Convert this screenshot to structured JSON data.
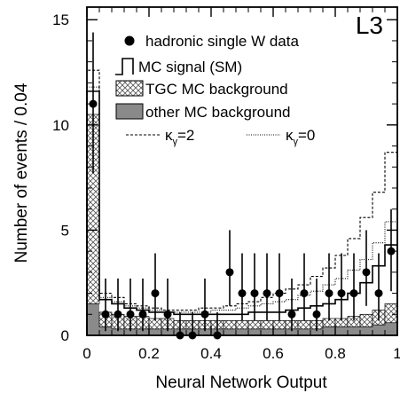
{
  "chart_data": {
    "type": "histogram",
    "experiment_label": "L3",
    "xlabel": "Neural Network Output",
    "ylabel": "Number of events / 0.04",
    "xlim": [
      0,
      1
    ],
    "ylim": [
      0,
      15.6
    ],
    "xticks": [
      0,
      0.2,
      0.4,
      0.6,
      0.8,
      1
    ],
    "xtick_labels": [
      "0",
      "0.2",
      "0.4",
      "0.6",
      "0.8",
      "1"
    ],
    "yticks": [
      0,
      5,
      10,
      15
    ],
    "ytick_labels": [
      "0",
      "5",
      "10",
      "15"
    ],
    "bin_edges": [
      0,
      0.04,
      0.08,
      0.12,
      0.16,
      0.2,
      0.24,
      0.28,
      0.32,
      0.36,
      0.4,
      0.44,
      0.48,
      0.52,
      0.56,
      0.6,
      0.64,
      0.68,
      0.72,
      0.76,
      0.8,
      0.84,
      0.88,
      0.92,
      0.96,
      1.0
    ],
    "legend_placement": "top-right",
    "legend": [
      {
        "key": "data",
        "label": "hadronic single W data"
      },
      {
        "key": "signal",
        "label": "MC signal (SM)"
      },
      {
        "key": "tgc",
        "label": "TGC MC background"
      },
      {
        "key": "other",
        "label": "other MC background"
      }
    ],
    "kappa_legend": [
      {
        "key": "k2",
        "label": "κ",
        "subscript": "γ",
        "value": "=2"
      },
      {
        "key": "k0",
        "label": "κ",
        "subscript": "γ",
        "value": "=0"
      }
    ],
    "series": [
      {
        "key": "other",
        "values": [
          1.5,
          0.4,
          0.3,
          0.3,
          0.3,
          0.3,
          0.3,
          0.3,
          0.3,
          0.3,
          0.3,
          0.3,
          0.3,
          0.3,
          0.3,
          0.3,
          0.3,
          0.3,
          0.3,
          0.4,
          0.4,
          0.4,
          0.4,
          0.5,
          0.6
        ]
      },
      {
        "key": "tgc",
        "values": [
          10.5,
          1.1,
          1.0,
          0.9,
          0.9,
          0.8,
          0.8,
          0.7,
          0.7,
          0.7,
          0.7,
          0.7,
          0.7,
          0.7,
          0.7,
          0.7,
          0.7,
          0.7,
          0.7,
          0.8,
          0.8,
          0.9,
          1.0,
          1.2,
          1.5
        ]
      },
      {
        "key": "signal",
        "values": [
          11.6,
          1.7,
          1.5,
          1.3,
          1.2,
          1.1,
          1.1,
          1.0,
          1.0,
          1.0,
          1.0,
          1.0,
          1.0,
          1.1,
          1.1,
          1.1,
          1.2,
          1.3,
          1.4,
          1.5,
          1.7,
          2.0,
          2.5,
          3.3,
          4.3
        ]
      },
      {
        "key": "k2",
        "values": [
          12.6,
          2.0,
          1.8,
          1.5,
          1.4,
          1.3,
          1.2,
          1.2,
          1.2,
          1.3,
          1.3,
          1.4,
          1.5,
          1.6,
          1.8,
          2.0,
          2.2,
          2.4,
          2.8,
          3.2,
          3.8,
          4.6,
          5.6,
          6.8,
          8.7
        ]
      },
      {
        "key": "k0",
        "values": [
          11.8,
          1.8,
          1.6,
          1.4,
          1.3,
          1.2,
          1.1,
          1.1,
          1.1,
          1.1,
          1.2,
          1.2,
          1.3,
          1.4,
          1.5,
          1.6,
          1.7,
          1.9,
          2.1,
          2.4,
          2.7,
          3.1,
          3.6,
          4.4,
          5.4
        ]
      }
    ],
    "data_points": {
      "x": [
        0.02,
        0.06,
        0.1,
        0.14,
        0.18,
        0.22,
        0.26,
        0.3,
        0.34,
        0.38,
        0.42,
        0.46,
        0.5,
        0.54,
        0.58,
        0.62,
        0.66,
        0.7,
        0.74,
        0.78,
        0.82,
        0.86,
        0.9,
        0.94,
        0.98
      ],
      "y": [
        11,
        1,
        1,
        1,
        1,
        2,
        1,
        0,
        0,
        1,
        0,
        3,
        2,
        2,
        2,
        2,
        1,
        2,
        1,
        2,
        2,
        2,
        3,
        2,
        4
      ],
      "err_up": [
        3.4,
        1.7,
        1.7,
        1.7,
        1.7,
        1.9,
        1.7,
        1.1,
        1.1,
        1.7,
        1.1,
        2.0,
        1.9,
        1.9,
        1.9,
        1.9,
        1.7,
        1.9,
        1.7,
        1.9,
        1.9,
        1.9,
        2.0,
        1.9,
        2.0
      ],
      "err_down": [
        3.3,
        0.8,
        0.8,
        0.8,
        0.8,
        1.3,
        0.8,
        0,
        0,
        0.8,
        0,
        1.6,
        1.3,
        1.3,
        1.3,
        1.3,
        0.8,
        1.3,
        0.8,
        1.3,
        1.3,
        1.3,
        1.6,
        1.3,
        1.9
      ]
    }
  }
}
